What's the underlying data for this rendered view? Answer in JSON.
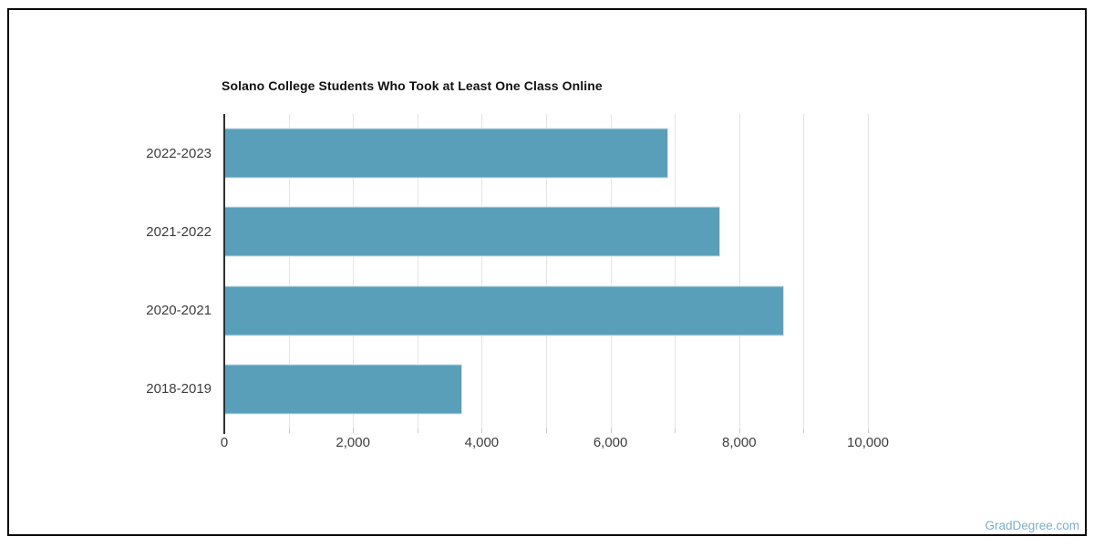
{
  "page": {
    "watermark": "GradDegree.com"
  },
  "chart_data": {
    "type": "bar",
    "orientation": "horizontal",
    "title": "Solano College Students Who Took at Least One Class Online",
    "categories": [
      "2022-2023",
      "2021-2022",
      "2020-2021",
      "2018-2019"
    ],
    "values": [
      6900,
      7700,
      8700,
      3700
    ],
    "xlabel": "",
    "ylabel": "",
    "xlim": [
      0,
      10000
    ],
    "x_ticks": [
      0,
      2000,
      4000,
      6000,
      8000,
      10000
    ],
    "x_tick_labels": [
      "0",
      "2,000",
      "4,000",
      "6,000",
      "8,000",
      "10,000"
    ],
    "gridline_step": 1000,
    "grid": "vertical",
    "legend": "none",
    "colors": {
      "bar": "#599FBA",
      "bar_border": "#CFE2EB",
      "grid": "#E4E4E4",
      "axis": "#2E2E2E",
      "tick": "#C9C9C9",
      "text": "#3D3D3D",
      "title": "#111111",
      "watermark": "#7EAEC8"
    }
  }
}
